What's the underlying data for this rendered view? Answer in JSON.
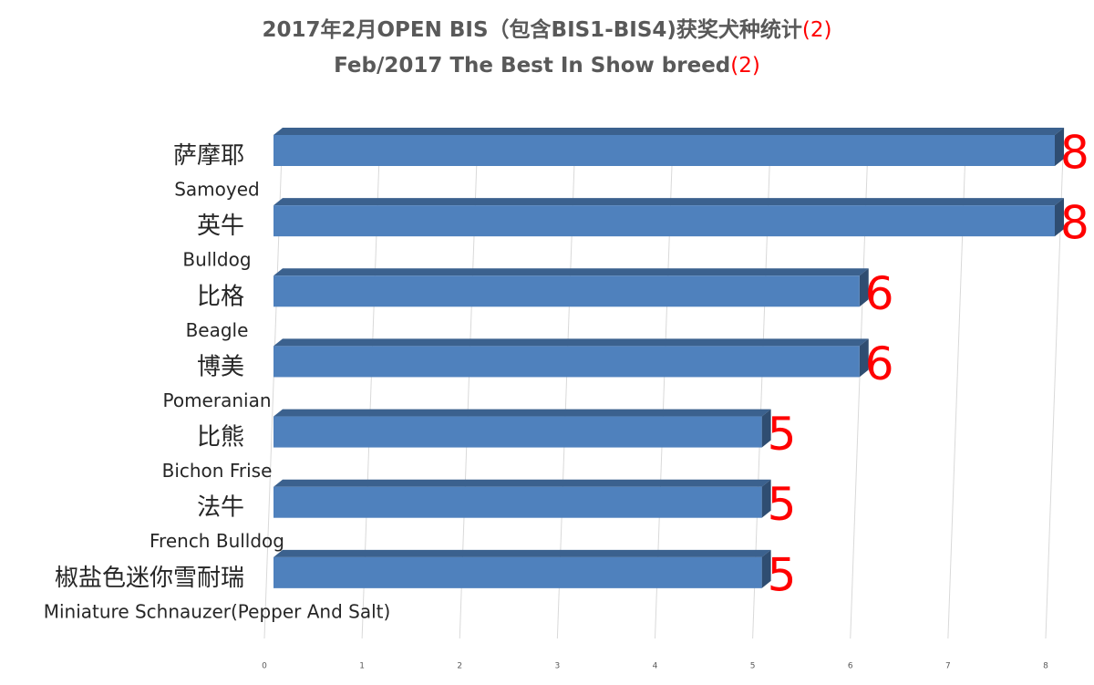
{
  "chart_data": {
    "type": "bar3d_horizontal",
    "title": "2017年2月OPEN BIS（包含BIS1-BIS4)获奖犬种统计",
    "title_note": "(2)",
    "subtitle": "Feb/2017 The Best In Show breed",
    "subtitle_note": "(2)",
    "categories": [
      "萨摩耶",
      "英牛",
      "比格",
      "博美",
      "比熊",
      "法牛",
      "椒盐色迷你雪耐瑞"
    ],
    "categories_en": [
      "Samoyed",
      "Bulldog",
      "Beagle",
      "Pomeranian",
      "Bichon Frise",
      "French Bulldog",
      "Miniature Schnauzer(Pepper And Salt)"
    ],
    "values": [
      8,
      8,
      6,
      6,
      5,
      5,
      5
    ],
    "color": "#4f81bd",
    "label_color": "#ff0000",
    "xlim": [
      0,
      8
    ],
    "xticks": [
      0,
      1,
      2,
      3,
      4,
      5,
      6,
      7,
      8
    ],
    "grid": true
  }
}
